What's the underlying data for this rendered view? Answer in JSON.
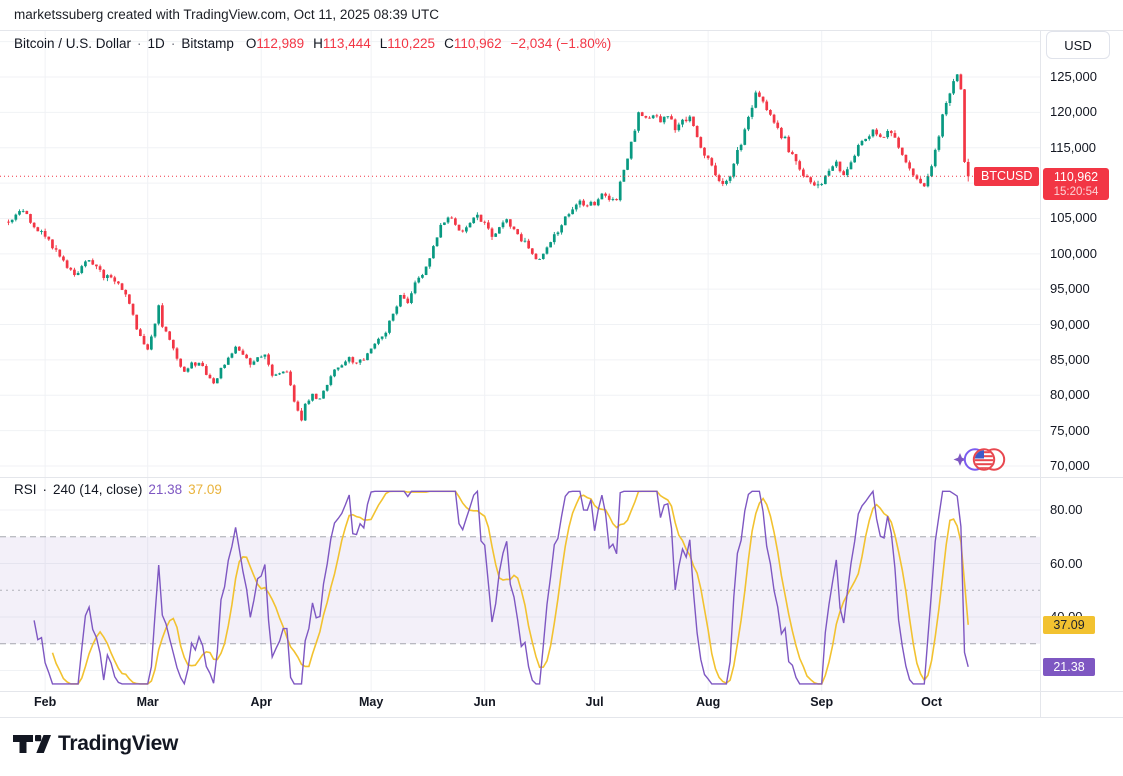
{
  "attribution": "marketssuberg created with TradingView.com, Oct 11, 2025 08:39 UTC",
  "header": {
    "title": "Bitcoin / U.S. Dollar",
    "interval": "1D",
    "exchange": "Bitstamp",
    "separator": "·",
    "ohlc": {
      "o_label": "O",
      "o": "112,989",
      "h_label": "H",
      "h": "113,444",
      "l_label": "L",
      "l": "110,225",
      "c_label": "C",
      "c": "110,962",
      "change": "−2,034 (−1.80%)"
    }
  },
  "price_scale": {
    "currency_button": "USD",
    "ticks": [
      "125,000",
      "120,000",
      "115,000",
      "110,000",
      "105,000",
      "100,000",
      "95,000",
      "90,000",
      "85,000",
      "80,000",
      "75,000",
      "70,000"
    ],
    "tick_values": [
      125000,
      120000,
      115000,
      110000,
      105000,
      100000,
      95000,
      90000,
      85000,
      80000,
      75000,
      70000
    ],
    "symbol_tag": "BTCUSD",
    "last_price": "110,962",
    "countdown": "15:20:54"
  },
  "time_axis": {
    "months": [
      "Feb",
      "Mar",
      "Apr",
      "May",
      "Jun",
      "Jul",
      "Aug",
      "Sep",
      "Oct"
    ],
    "month_day_index": [
      10,
      38,
      69,
      99,
      130,
      160,
      191,
      222,
      252
    ]
  },
  "rsi_panel": {
    "name": "RSI",
    "separator": "·",
    "params": "240 (14, close)",
    "value": "21.38",
    "ma_value": "37.09",
    "ticks": [
      "80.00",
      "60.00",
      "40.00"
    ],
    "tick_values": [
      80,
      60,
      40
    ],
    "gridline_values": [
      80,
      60,
      40,
      20
    ],
    "band_levels": [
      70,
      50,
      30
    ]
  },
  "footer": {
    "brand": "TradingView"
  },
  "colors": {
    "up": "#089981",
    "down": "#F23645",
    "current_price_line": "#F23645",
    "rsi_line": "#7E57C2",
    "rsi_ma_line": "#F2C230",
    "rsi_band_fill": "rgba(126,87,194,0.09)",
    "band_dash": "#787B86",
    "grid": "#F0F2F5",
    "text": "#131722"
  },
  "chart_data": {
    "type": "candlestick",
    "title": "Bitcoin / U.S. Dollar",
    "symbol": "BTCUSD",
    "exchange": "Bitstamp",
    "interval": "1D",
    "y_axis_range": [
      68400,
      131600
    ],
    "visible_price_ticks": [
      125000,
      120000,
      115000,
      105000,
      100000,
      95000,
      90000,
      85000,
      80000,
      75000,
      70000
    ],
    "current_price": 110962,
    "last_candle": {
      "open": 112989,
      "high": 113444,
      "low": 110225,
      "close": 110962
    },
    "change": -2034,
    "change_pct": -1.8,
    "days_total": 263,
    "price_path_anchors": [
      [
        0,
        104500
      ],
      [
        2,
        105600
      ],
      [
        4,
        106300
      ],
      [
        6,
        104200
      ],
      [
        8,
        103200
      ],
      [
        10,
        102600
      ],
      [
        12,
        101200
      ],
      [
        14,
        99600
      ],
      [
        16,
        98000
      ],
      [
        18,
        96900
      ],
      [
        20,
        98300
      ],
      [
        22,
        99400
      ],
      [
        24,
        98100
      ],
      [
        26,
        96700
      ],
      [
        28,
        96300
      ],
      [
        30,
        96000
      ],
      [
        32,
        94200
      ],
      [
        34,
        91200
      ],
      [
        36,
        88300
      ],
      [
        38,
        86300
      ],
      [
        40,
        90600
      ],
      [
        41,
        92600
      ],
      [
        42,
        90100
      ],
      [
        44,
        87900
      ],
      [
        46,
        85200
      ],
      [
        48,
        83400
      ],
      [
        50,
        84300
      ],
      [
        52,
        84900
      ],
      [
        54,
        82900
      ],
      [
        56,
        81700
      ],
      [
        58,
        83900
      ],
      [
        60,
        84900
      ],
      [
        62,
        86700
      ],
      [
        64,
        85600
      ],
      [
        66,
        84300
      ],
      [
        68,
        85400
      ],
      [
        70,
        85900
      ],
      [
        72,
        82700
      ],
      [
        74,
        82900
      ],
      [
        76,
        83700
      ],
      [
        78,
        79000
      ],
      [
        80,
        76400
      ],
      [
        81,
        78900
      ],
      [
        83,
        80300
      ],
      [
        85,
        79500
      ],
      [
        87,
        81600
      ],
      [
        89,
        83700
      ],
      [
        91,
        84400
      ],
      [
        93,
        85300
      ],
      [
        95,
        84500
      ],
      [
        97,
        85000
      ],
      [
        99,
        86600
      ],
      [
        101,
        88100
      ],
      [
        103,
        88700
      ],
      [
        105,
        91600
      ],
      [
        107,
        94300
      ],
      [
        109,
        93300
      ],
      [
        111,
        95900
      ],
      [
        113,
        97300
      ],
      [
        115,
        99400
      ],
      [
        117,
        102600
      ],
      [
        118,
        103700
      ],
      [
        120,
        105300
      ],
      [
        122,
        104200
      ],
      [
        124,
        103100
      ],
      [
        126,
        104700
      ],
      [
        128,
        105400
      ],
      [
        130,
        104200
      ],
      [
        132,
        102700
      ],
      [
        134,
        103900
      ],
      [
        136,
        104900
      ],
      [
        138,
        103500
      ],
      [
        140,
        101900
      ],
      [
        142,
        100900
      ],
      [
        144,
        99300
      ],
      [
        146,
        99900
      ],
      [
        148,
        101600
      ],
      [
        150,
        103300
      ],
      [
        152,
        105100
      ],
      [
        154,
        106500
      ],
      [
        156,
        107300
      ],
      [
        158,
        106800
      ],
      [
        160,
        107400
      ],
      [
        162,
        108300
      ],
      [
        164,
        107700
      ],
      [
        166,
        108100
      ],
      [
        167,
        110500
      ],
      [
        169,
        113500
      ],
      [
        171,
        117500
      ],
      [
        172,
        119800
      ],
      [
        174,
        118900
      ],
      [
        176,
        119900
      ],
      [
        178,
        118600
      ],
      [
        180,
        119500
      ],
      [
        182,
        117700
      ],
      [
        184,
        118900
      ],
      [
        186,
        119300
      ],
      [
        188,
        116400
      ],
      [
        190,
        114000
      ],
      [
        192,
        112300
      ],
      [
        194,
        110500
      ],
      [
        195,
        109400
      ],
      [
        197,
        111200
      ],
      [
        199,
        114300
      ],
      [
        201,
        117500
      ],
      [
        203,
        121000
      ],
      [
        204,
        123200
      ],
      [
        206,
        121400
      ],
      [
        208,
        119500
      ],
      [
        210,
        117800
      ],
      [
        212,
        116000
      ],
      [
        214,
        113600
      ],
      [
        216,
        111900
      ],
      [
        218,
        110600
      ],
      [
        220,
        109800
      ],
      [
        222,
        110300
      ],
      [
        224,
        111900
      ],
      [
        226,
        112700
      ],
      [
        228,
        111300
      ],
      [
        230,
        112900
      ],
      [
        232,
        114900
      ],
      [
        234,
        116400
      ],
      [
        236,
        117500
      ],
      [
        238,
        116300
      ],
      [
        240,
        117400
      ],
      [
        242,
        116200
      ],
      [
        244,
        114000
      ],
      [
        246,
        112200
      ],
      [
        248,
        110900
      ],
      [
        250,
        109500
      ],
      [
        252,
        112400
      ],
      [
        253,
        114600
      ],
      [
        255,
        119300
      ],
      [
        257,
        122600
      ],
      [
        258,
        124300
      ],
      [
        259,
        125600
      ],
      [
        260,
        123000
      ],
      [
        261,
        112989
      ],
      [
        262,
        110962
      ]
    ],
    "rsi": {
      "name": "RSI · 240 (14, close)",
      "last_value": 21.38,
      "last_ma_value": 37.09,
      "overbought": 70,
      "middle": 50,
      "oversold": 30,
      "axis_ticks": [
        80,
        60,
        40
      ],
      "approx_range": [
        15,
        87
      ]
    }
  }
}
